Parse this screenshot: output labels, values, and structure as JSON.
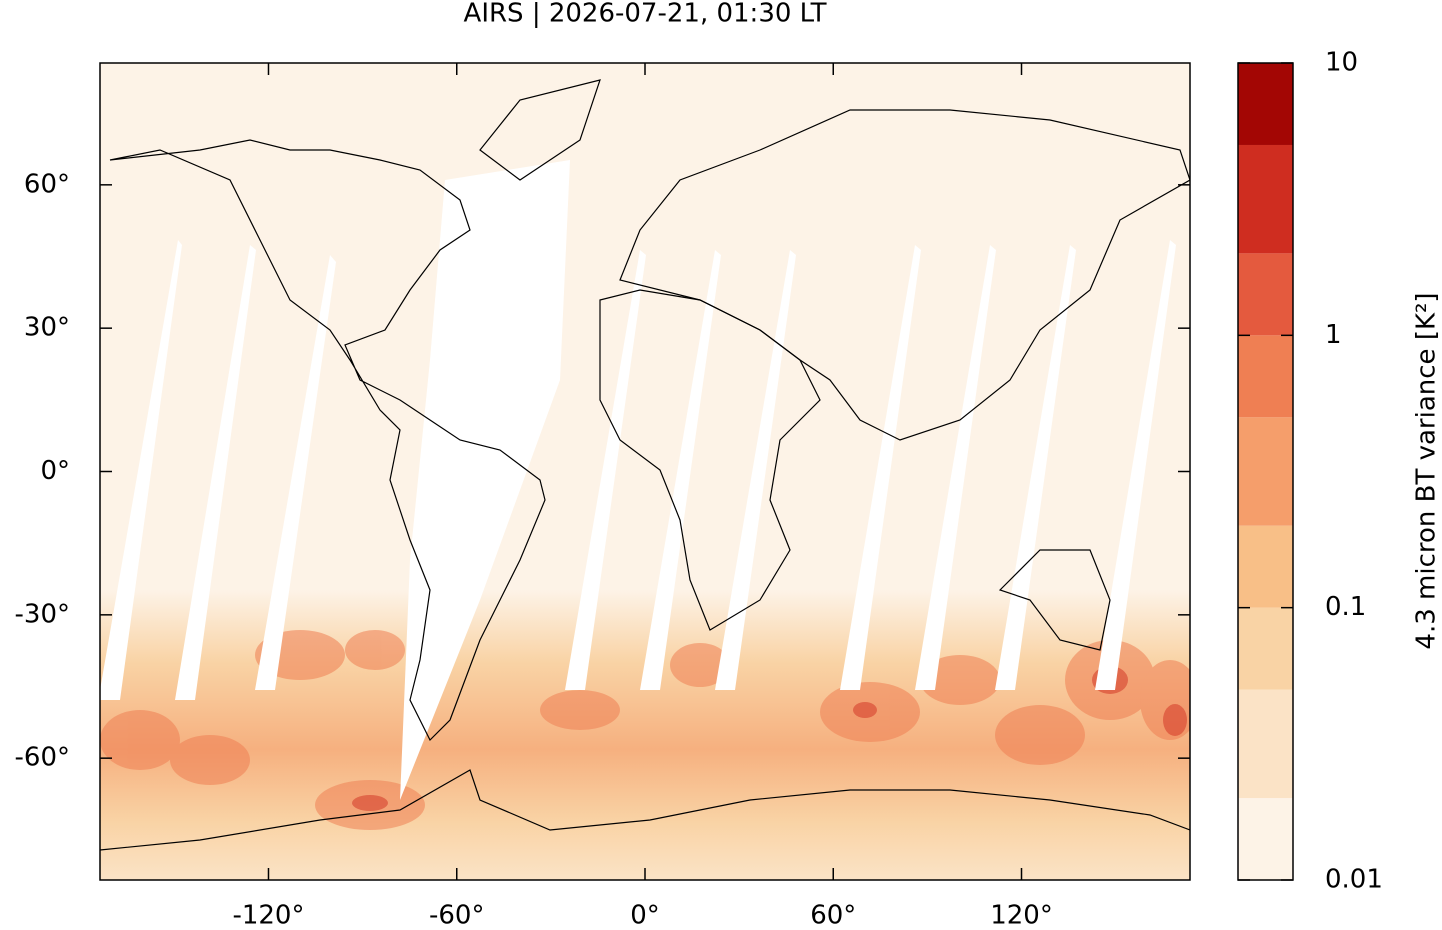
{
  "chart_data": {
    "type": "map",
    "title": "AIRS | 2026-07-21, 01:30 LT",
    "xlim": [
      -173.7,
      173.7
    ],
    "ylim": [
      -85.5,
      85.5
    ],
    "xticks": [
      {
        "value": -120,
        "label": "-120°"
      },
      {
        "value": -60,
        "label": "-60°"
      },
      {
        "value": 0,
        "label": "0°"
      },
      {
        "value": 60,
        "label": "60°"
      },
      {
        "value": 120,
        "label": "120°"
      }
    ],
    "yticks": [
      {
        "value": -60,
        "label": "-60°"
      },
      {
        "value": -30,
        "label": "-30°"
      },
      {
        "value": 0,
        "label": "0°"
      },
      {
        "value": 30,
        "label": "30°"
      },
      {
        "value": 60,
        "label": "60°"
      }
    ],
    "colorbar": {
      "label": "4.3 micron BT variance [K²]",
      "log": true,
      "lim": [
        0.01,
        10
      ],
      "ticks": [
        0.01,
        0.1,
        1,
        10
      ],
      "levels": [
        0.01,
        0.02,
        0.05,
        0.1,
        0.2,
        0.5,
        1,
        2,
        5,
        10
      ],
      "colors": [
        "#fdf3e7",
        "#fbe3c6",
        "#f9d3a5",
        "#f8bf87",
        "#f59e6b",
        "#ef7f53",
        "#e45a3e",
        "#cf2d20",
        "#a30604"
      ]
    }
  }
}
